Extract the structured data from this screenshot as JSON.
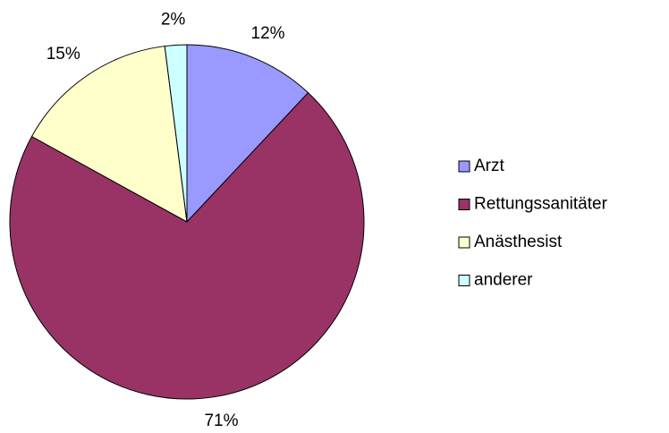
{
  "chart_data": {
    "type": "pie",
    "categories": [
      "Arzt",
      "Rettungssanitäter",
      "Anästhesist",
      "anderer"
    ],
    "values": [
      12,
      71,
      15,
      2
    ],
    "value_labels": [
      "12%",
      "71%",
      "15%",
      "2%"
    ],
    "colors": [
      "#9999ff",
      "#993366",
      "#ffffcc",
      "#ccffff"
    ],
    "legend": "right"
  }
}
